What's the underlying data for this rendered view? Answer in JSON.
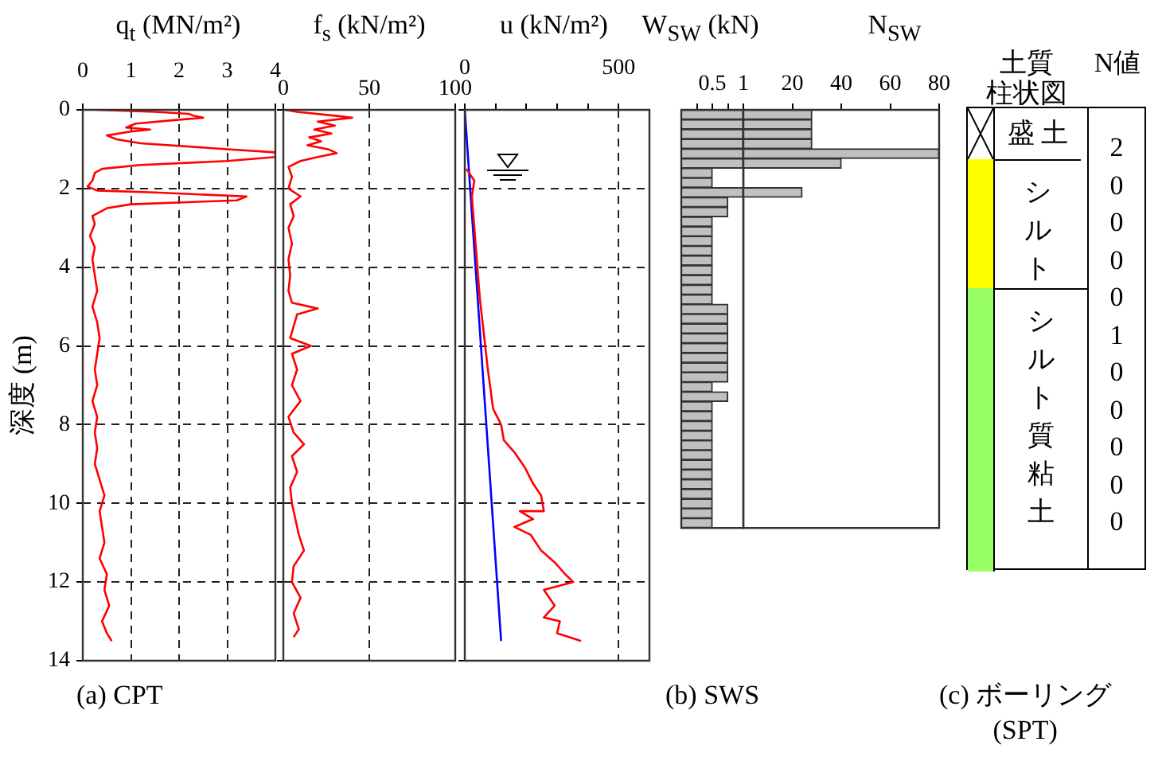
{
  "chart_data": [
    {
      "type": "line",
      "xlabel": "q$_{t}$ (MN/m²)",
      "ylabel": "深度 (m)",
      "xlim": [
        0,
        4
      ],
      "xticks": [
        0,
        1,
        2,
        3,
        4
      ],
      "ylim": [
        14,
        0
      ],
      "yticks": [
        0,
        2,
        4,
        6,
        8,
        10,
        12,
        14
      ],
      "grid": true,
      "marker": "none",
      "annotations": [
        "(a) CPT"
      ],
      "series": [
        {
          "color": "#ff0000",
          "x": [
            0.3,
            1.5,
            2.2,
            2.3,
            2.5,
            2.0,
            1.1,
            0.9,
            1.4,
            1.0,
            0.5,
            0.7,
            1.2,
            3.0,
            4.0,
            4.0,
            3.0,
            1.2,
            0.4,
            0.25,
            0.2,
            0.1,
            0.3,
            1.5,
            3.4,
            3.2,
            1.0,
            0.5,
            0.2,
            0.25,
            0.15,
            0.25,
            0.2,
            0.25,
            0.3,
            0.2,
            0.3,
            0.35,
            0.3,
            0.25,
            0.3,
            0.2,
            0.3,
            0.25,
            0.3,
            0.25,
            0.35,
            0.45,
            0.35,
            0.4,
            0.45,
            0.35,
            0.5,
            0.45,
            0.55,
            0.4,
            0.5,
            0.6
          ],
          "values": [
            0,
            0.05,
            0.1,
            0.15,
            0.2,
            0.25,
            0.35,
            0.45,
            0.5,
            0.55,
            0.65,
            0.75,
            0.85,
            1.0,
            1.08,
            1.2,
            1.3,
            1.4,
            1.5,
            1.6,
            1.8,
            1.95,
            2.05,
            2.1,
            2.2,
            2.3,
            2.4,
            2.5,
            2.7,
            2.9,
            3.2,
            3.5,
            3.8,
            4.2,
            4.6,
            5.0,
            5.4,
            5.8,
            6.2,
            6.6,
            7.0,
            7.4,
            7.8,
            8.2,
            8.6,
            9.0,
            9.4,
            9.8,
            10.2,
            10.6,
            11.0,
            11.4,
            11.8,
            12.2,
            12.6,
            13.0,
            13.3,
            13.5
          ]
        }
      ]
    },
    {
      "type": "line",
      "xlabel": "f$_{s}$ (kN/m²)",
      "xlim": [
        0,
        100
      ],
      "xticks": [
        0,
        50,
        100
      ],
      "ylim": [
        14,
        0
      ],
      "yticks": [
        0,
        2,
        4,
        6,
        8,
        10,
        12,
        14
      ],
      "tick_labels": "x",
      "grid": true,
      "marker": "none",
      "series": [
        {
          "color": "#ff0000",
          "x": [
            1,
            8,
            30,
            40,
            20,
            30,
            18,
            28,
            15,
            22,
            14,
            26,
            31,
            20,
            10,
            3,
            5,
            3,
            10,
            4,
            6,
            3,
            5,
            3,
            4,
            3,
            5,
            20,
            8,
            6,
            4,
            16,
            5,
            8,
            5,
            10,
            3,
            6,
            12,
            5,
            8,
            4,
            5,
            7,
            9,
            12,
            6,
            5,
            10,
            6,
            9,
            6
          ],
          "values": [
            0,
            0.05,
            0.15,
            0.2,
            0.3,
            0.4,
            0.5,
            0.6,
            0.7,
            0.8,
            0.9,
            1.0,
            1.1,
            1.2,
            1.3,
            1.45,
            1.7,
            2.0,
            2.2,
            2.4,
            2.7,
            3.0,
            3.4,
            3.8,
            4.2,
            4.6,
            4.9,
            5.05,
            5.2,
            5.5,
            5.8,
            6.0,
            6.2,
            6.6,
            7.0,
            7.4,
            7.8,
            8.2,
            8.5,
            8.8,
            9.2,
            9.6,
            10.0,
            10.4,
            10.8,
            11.2,
            11.6,
            12.0,
            12.4,
            12.8,
            13.2,
            13.4
          ]
        }
      ]
    },
    {
      "type": "line",
      "xlabel": "u (kN/m²)",
      "xlim": [
        0,
        600
      ],
      "xticks": [
        0,
        {
          "value": 100,
          "label": null
        },
        {
          "value": 200,
          "label": null
        },
        {
          "value": 300,
          "label": null
        },
        {
          "value": 400,
          "label": null
        },
        500
      ],
      "ylim": [
        14,
        0
      ],
      "yticks": [
        0,
        2,
        4,
        6,
        8,
        10,
        12,
        14
      ],
      "tick_labels": "x",
      "grid": true,
      "marker": "none",
      "series": [
        {
          "color": "#ff0000",
          "x": [
            5,
            31,
            23,
            31,
            49,
            75,
            92,
            118,
            127,
            161,
            196,
            222,
            248,
            257,
            179,
            222,
            161,
            214,
            248,
            292,
            326,
            352,
            257,
            292,
            257,
            309,
            300,
            378
          ],
          "values": [
            1.5,
            1.8,
            2.2,
            3.0,
            4.8,
            6.6,
            7.6,
            8.0,
            8.4,
            8.7,
            9.1,
            9.5,
            9.8,
            10.2,
            10.2,
            10.4,
            10.6,
            10.8,
            11.2,
            11.5,
            11.8,
            12.0,
            12.2,
            12.6,
            12.9,
            13.0,
            13.3,
            13.5
          ]
        },
        {
          "color": "#0000ff",
          "x": [
            0,
            118
          ],
          "values": [
            0,
            13.5
          ]
        }
      ]
    },
    {
      "type": "bar",
      "orientation": "horizontal",
      "xlabel": "W$_{SW}$ (kN)",
      "color": "#c0c0c0",
      "xlim": [
        0,
        1
      ],
      "xticks": [
        {
          "value": 0.25,
          "label": null
        },
        0.5,
        {
          "value": 0.75,
          "label": null
        },
        1
      ],
      "grid": false,
      "annotations": [
        "(b) SWS"
      ],
      "categories": [
        null,
        null,
        null,
        null,
        null,
        null,
        null,
        null,
        null,
        null,
        null,
        null,
        null,
        null,
        null,
        null,
        null,
        null,
        null,
        null,
        null,
        null,
        null,
        null,
        null,
        null,
        null,
        null,
        null,
        null,
        null,
        null,
        null,
        null,
        null,
        null,
        null,
        null,
        null,
        null,
        null,
        null,
        null
      ],
      "values": [
        1,
        1,
        1,
        1,
        1,
        1,
        0.5,
        0.5,
        1,
        0.75,
        0.75,
        0.5,
        0.5,
        0.5,
        0.5,
        0.5,
        0.5,
        0.5,
        0.5,
        0.5,
        0.75,
        0.75,
        0.75,
        0.75,
        0.75,
        0.75,
        0.75,
        0.75,
        0.5,
        0.75,
        0.5,
        0.5,
        0.5,
        0.5,
        0.5,
        0.5,
        0.5,
        0.5,
        0.5,
        0.5,
        0.5,
        0.5,
        0.5
      ]
    },
    {
      "type": "bar",
      "orientation": "horizontal",
      "xlabel": "N$_{SW}$",
      "color": "#c0c0c0",
      "xlim": [
        0,
        80
      ],
      "xticks": [
        20,
        40,
        60,
        80
      ],
      "grid": false,
      "categories": [
        null,
        null,
        null,
        null,
        null,
        null,
        null,
        null,
        null,
        null,
        null,
        null,
        null,
        null,
        null,
        null,
        null,
        null,
        null,
        null,
        null,
        null,
        null,
        null,
        null,
        null,
        null,
        null,
        null,
        null,
        null,
        null,
        null,
        null,
        null,
        null,
        null,
        null,
        null,
        null,
        null,
        null,
        null
      ],
      "values": [
        28,
        28,
        28,
        28,
        80,
        40,
        null,
        null,
        24,
        null,
        null,
        null,
        null,
        null,
        null,
        null,
        null,
        null,
        null,
        null,
        null,
        null,
        null,
        null,
        null,
        null,
        null,
        null,
        null,
        null,
        null,
        null,
        null,
        null,
        null,
        null,
        null,
        null,
        null,
        null,
        null,
        null,
        null
      ]
    },
    {
      "type": "other",
      "title": "土質",
      "subtitle": "柱状図",
      "categories": [
        "盛土",
        "シルト",
        "シルト質粘土"
      ],
      "colors": [
        "#ffffff",
        "#ffff00",
        "#99ff66"
      ],
      "annotations": [
        "(c) ボーリング\n(SPT)"
      ]
    },
    {
      "type": "other",
      "title": "N値",
      "values": [
        2,
        0,
        0,
        0,
        0,
        1,
        0,
        0,
        0,
        0,
        0
      ],
      "data_labels": true
    }
  ]
}
